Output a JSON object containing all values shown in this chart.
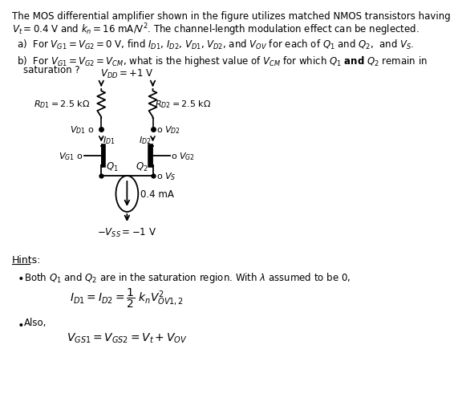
{
  "title_text": "The MOS differential amplifier shown in the figure utilizes matched NMOS transistors having\n$V_t = 0.4$ V and $k_n = 16$ mA/V$^2$. The channel-length modulation effect can be neglected.",
  "part_a": "a)  For $V_{G1} = V_{G2} = 0$ V, find $I_{D1}$, $I_{D2}$, $V_{D1}$, $V_{D2}$, and $V_{OV}$ for each of $Q_1$ and $Q_2$,  and $V_S$.",
  "part_b": "b)  For $V_{G1} = V_{G2} = V_{CM}$, what is the highest value of $V_{CM}$ for which $Q_1$ and $Q_2$ remain in\n      saturation ?",
  "hints_title": "Hints:",
  "hint1": "Both $Q_1$ and $Q_2$ are in the saturation region. With $\\lambda$ assumed to be 0,",
  "hint1_eq": "$I_{D1} = I_{D2} = \\dfrac{1}{2}\\ k_n V^2_{OV1,2}$",
  "hint2": "Also,",
  "hint2_eq": "$V_{GS1} = V_{GS2} = V_t + V_{OV}$",
  "bg_color": "#ffffff",
  "text_color": "#000000",
  "circuit": {
    "vdd_label": "$V_{DD} = +1$ V",
    "vss_label": "$-V_{SS} = -1$ V",
    "rd1_label": "$R_{D1} = 2.5$ k$\\Omega$",
    "rd2_label": "$R_{D2} = 2.5$ k$\\Omega$",
    "id1_label": "$I_{D1}$",
    "id2_label": "$I_{D2}$",
    "vd1_label": "$V_{D1}$",
    "vd2_label": "$V_{D2}$",
    "vg1_label": "$V_{G1}$",
    "vg2_label": "$V_{G2}$",
    "vs_label": "$V_S$",
    "q1_label": "$Q_1$",
    "q2_label": "$Q_2$",
    "iss_label": "0.4 mA"
  }
}
